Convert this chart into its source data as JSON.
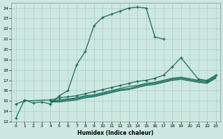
{
  "xlabel": "Humidex (Indice chaleur)",
  "bg_color": "#cde8e0",
  "line_color": "#1a6b5a",
  "grid_color": "#aacfc5",
  "xlim": [
    -0.5,
    23.5
  ],
  "ylim": [
    13,
    24.5
  ],
  "xticks": [
    0,
    1,
    2,
    3,
    4,
    5,
    6,
    7,
    8,
    9,
    10,
    11,
    12,
    13,
    14,
    15,
    16,
    17,
    18,
    19,
    20,
    21,
    22,
    23
  ],
  "yticks": [
    13,
    14,
    15,
    16,
    17,
    18,
    19,
    20,
    21,
    22,
    23,
    24
  ],
  "lines": [
    {
      "x": [
        0,
        1,
        2,
        3,
        4,
        5,
        6,
        7,
        8,
        9,
        10,
        11,
        12,
        13,
        14,
        15,
        16,
        17
      ],
      "y": [
        13.3,
        15.1,
        14.8,
        14.9,
        14.7,
        15.5,
        16.0,
        18.5,
        19.8,
        22.3,
        23.1,
        23.4,
        23.7,
        24.0,
        24.1,
        24.0,
        21.2,
        21.0
      ],
      "marker": true
    },
    {
      "x": [
        0,
        1,
        4,
        5,
        6,
        7,
        8,
        9,
        10,
        11,
        12,
        13,
        14,
        15,
        16,
        17,
        18,
        19,
        21,
        22,
        23
      ],
      "y": [
        14.7,
        15.0,
        15.1,
        15.3,
        15.4,
        15.5,
        15.7,
        15.9,
        16.1,
        16.3,
        16.5,
        16.7,
        16.9,
        17.0,
        17.2,
        17.5,
        18.3,
        19.2,
        17.1,
        17.0,
        17.5
      ],
      "marker": true
    },
    {
      "x": [
        4,
        5,
        6,
        7,
        8,
        9,
        10,
        11,
        12,
        13,
        14,
        15,
        16,
        17,
        18,
        19,
        21,
        22,
        23
      ],
      "y": [
        15.0,
        15.1,
        15.2,
        15.3,
        15.5,
        15.6,
        15.8,
        16.0,
        16.2,
        16.4,
        16.5,
        16.7,
        16.8,
        17.0,
        17.2,
        17.3,
        17.0,
        16.9,
        17.4
      ],
      "marker": false
    },
    {
      "x": [
        4,
        5,
        6,
        7,
        8,
        9,
        10,
        11,
        12,
        13,
        14,
        15,
        16,
        17,
        18,
        19,
        21,
        22,
        23
      ],
      "y": [
        15.0,
        15.0,
        15.1,
        15.2,
        15.4,
        15.5,
        15.7,
        15.9,
        16.1,
        16.2,
        16.4,
        16.6,
        16.7,
        16.9,
        17.1,
        17.2,
        16.9,
        16.8,
        17.3
      ],
      "marker": false
    },
    {
      "x": [
        4,
        5,
        6,
        7,
        8,
        9,
        10,
        11,
        12,
        13,
        14,
        15,
        16,
        17,
        18,
        19,
        21,
        22,
        23
      ],
      "y": [
        14.9,
        14.9,
        15.0,
        15.1,
        15.3,
        15.4,
        15.6,
        15.8,
        16.0,
        16.1,
        16.3,
        16.5,
        16.6,
        16.8,
        17.0,
        17.1,
        16.8,
        16.7,
        17.2
      ],
      "marker": false
    }
  ]
}
